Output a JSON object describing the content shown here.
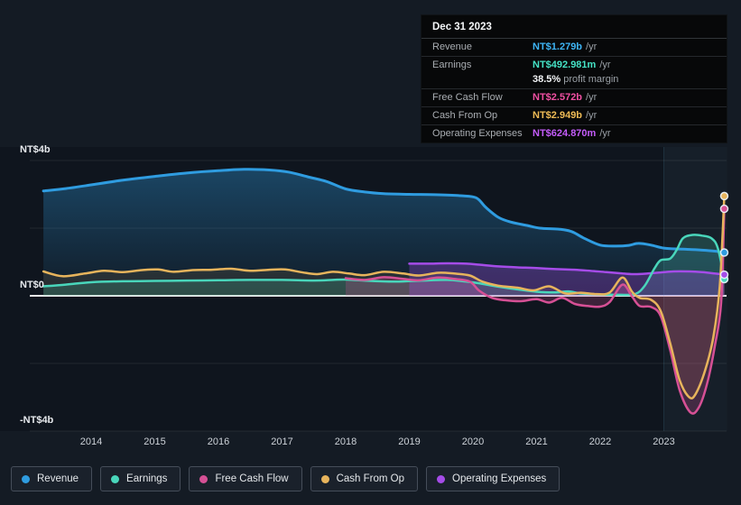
{
  "tooltip": {
    "date": "Dec 31 2023",
    "rows": [
      {
        "label": "Revenue",
        "value": "NT$1.279b",
        "suffix": "/yr",
        "series": "revenue"
      },
      {
        "label": "Earnings",
        "value": "NT$492.981m",
        "suffix": "/yr",
        "series": "earnings",
        "extra_bold": "38.5%",
        "extra_text": " profit margin"
      },
      {
        "label": "Free Cash Flow",
        "value": "NT$2.572b",
        "suffix": "/yr",
        "series": "fcf"
      },
      {
        "label": "Cash From Op",
        "value": "NT$2.949b",
        "suffix": "/yr",
        "series": "cashop"
      },
      {
        "label": "Operating Expenses",
        "value": "NT$624.870m",
        "suffix": "/yr",
        "series": "opex"
      }
    ]
  },
  "legend": [
    {
      "label": "Revenue",
      "series": "revenue"
    },
    {
      "label": "Earnings",
      "series": "earnings"
    },
    {
      "label": "Free Cash Flow",
      "series": "fcf"
    },
    {
      "label": "Cash From Op",
      "series": "cashop"
    },
    {
      "label": "Operating Expenses",
      "series": "opex"
    }
  ],
  "colors": {
    "revenue": {
      "line": "#2f9ce0",
      "fill": "rgba(47,156,224,0.38)",
      "fill2": "rgba(47,156,224,0.05)",
      "text": "#3eb5f6"
    },
    "earnings": {
      "line": "#49d6bb",
      "fill": "rgba(73,214,187,0.20)",
      "text": "#45e3c6"
    },
    "fcf": {
      "line": "#d65095",
      "fill": "rgba(214,80,149,0.24)",
      "text": "#f050a2"
    },
    "cashop": {
      "line": "#e7b45c",
      "fill": "rgba(231,180,92,0.10)",
      "text": "#efbb56"
    },
    "opex": {
      "line": "#a54ce8",
      "fill": "rgba(165,76,232,0.30)",
      "text": "#c45cfa"
    }
  },
  "chart_data": {
    "type": "area",
    "title": "",
    "unit": "NT$ billions per year",
    "legend_position": "bottom",
    "x_axis": {
      "tick_labels": [
        "2014",
        "2015",
        "2016",
        "2017",
        "2018",
        "2019",
        "2020",
        "2021",
        "2022",
        "2023"
      ],
      "tick_years": [
        2014,
        2015,
        2016,
        2017,
        2018,
        2019,
        2020,
        2021,
        2022,
        2023
      ],
      "range": [
        2013.25,
        2024.0
      ]
    },
    "y_axis": {
      "labeled_ticks": [
        {
          "label": "NT$4b",
          "value": 4
        },
        {
          "label": "NT$0",
          "value": 0
        },
        {
          "label": "-NT$4b",
          "value": -4
        }
      ],
      "gridline_values": [
        4,
        2,
        0,
        -2,
        -4
      ],
      "range": [
        -4.4,
        4.4
      ]
    },
    "highlight_band": {
      "from_year": 2023.0,
      "to_year": 2023.99
    },
    "series": [
      {
        "id": "revenue",
        "name": "Revenue",
        "points": [
          [
            2013.25,
            3.1
          ],
          [
            2013.6,
            3.17
          ],
          [
            2014,
            3.28
          ],
          [
            2014.5,
            3.42
          ],
          [
            2015,
            3.53
          ],
          [
            2015.5,
            3.63
          ],
          [
            2016,
            3.7
          ],
          [
            2016.4,
            3.74
          ],
          [
            2016.8,
            3.72
          ],
          [
            2017.1,
            3.66
          ],
          [
            2017.4,
            3.52
          ],
          [
            2017.7,
            3.38
          ],
          [
            2018,
            3.16
          ],
          [
            2018.3,
            3.07
          ],
          [
            2018.6,
            3.02
          ],
          [
            2019,
            3.0
          ],
          [
            2019.4,
            2.99
          ],
          [
            2019.8,
            2.96
          ],
          [
            2020.05,
            2.9
          ],
          [
            2020.2,
            2.62
          ],
          [
            2020.4,
            2.32
          ],
          [
            2020.6,
            2.18
          ],
          [
            2020.85,
            2.08
          ],
          [
            2021.05,
            2.0
          ],
          [
            2021.35,
            1.97
          ],
          [
            2021.55,
            1.9
          ],
          [
            2021.75,
            1.7
          ],
          [
            2022,
            1.5
          ],
          [
            2022.25,
            1.47
          ],
          [
            2022.45,
            1.49
          ],
          [
            2022.6,
            1.55
          ],
          [
            2022.8,
            1.5
          ],
          [
            2023.0,
            1.41
          ],
          [
            2023.3,
            1.38
          ],
          [
            2023.6,
            1.35
          ],
          [
            2023.8,
            1.32
          ],
          [
            2023.95,
            1.279
          ]
        ]
      },
      {
        "id": "cashop",
        "name": "Cash From Op",
        "points": [
          [
            2013.25,
            0.72
          ],
          [
            2013.55,
            0.58
          ],
          [
            2013.9,
            0.66
          ],
          [
            2014.2,
            0.74
          ],
          [
            2014.5,
            0.7
          ],
          [
            2014.8,
            0.76
          ],
          [
            2015.05,
            0.78
          ],
          [
            2015.3,
            0.71
          ],
          [
            2015.6,
            0.76
          ],
          [
            2015.9,
            0.77
          ],
          [
            2016.2,
            0.8
          ],
          [
            2016.5,
            0.74
          ],
          [
            2016.8,
            0.77
          ],
          [
            2017.05,
            0.78
          ],
          [
            2017.3,
            0.7
          ],
          [
            2017.55,
            0.64
          ],
          [
            2017.8,
            0.71
          ],
          [
            2018.05,
            0.66
          ],
          [
            2018.3,
            0.61
          ],
          [
            2018.6,
            0.71
          ],
          [
            2018.9,
            0.66
          ],
          [
            2019.15,
            0.6
          ],
          [
            2019.45,
            0.68
          ],
          [
            2019.7,
            0.66
          ],
          [
            2019.95,
            0.6
          ],
          [
            2020.15,
            0.42
          ],
          [
            2020.4,
            0.3
          ],
          [
            2020.7,
            0.24
          ],
          [
            2020.95,
            0.16
          ],
          [
            2021.2,
            0.28
          ],
          [
            2021.45,
            0.07
          ],
          [
            2021.7,
            0.09
          ],
          [
            2021.95,
            0.05
          ],
          [
            2022.15,
            0.1
          ],
          [
            2022.35,
            0.54
          ],
          [
            2022.5,
            0.12
          ],
          [
            2022.62,
            -0.06
          ],
          [
            2022.8,
            -0.12
          ],
          [
            2022.95,
            -0.45
          ],
          [
            2023.1,
            -1.4
          ],
          [
            2023.25,
            -2.5
          ],
          [
            2023.4,
            -3.0
          ],
          [
            2023.5,
            -2.9
          ],
          [
            2023.65,
            -2.2
          ],
          [
            2023.78,
            -1.2
          ],
          [
            2023.88,
            0.3
          ],
          [
            2023.95,
            2.949
          ]
        ]
      },
      {
        "id": "earnings",
        "name": "Earnings",
        "points": [
          [
            2013.25,
            0.28
          ],
          [
            2013.6,
            0.33
          ],
          [
            2014,
            0.4
          ],
          [
            2014.5,
            0.43
          ],
          [
            2015,
            0.44
          ],
          [
            2015.5,
            0.45
          ],
          [
            2016,
            0.46
          ],
          [
            2016.5,
            0.47
          ],
          [
            2017,
            0.47
          ],
          [
            2017.5,
            0.45
          ],
          [
            2017.8,
            0.47
          ],
          [
            2018,
            0.48
          ],
          [
            2018.4,
            0.44
          ],
          [
            2018.8,
            0.42
          ],
          [
            2019.2,
            0.45
          ],
          [
            2019.6,
            0.47
          ],
          [
            2019.9,
            0.42
          ],
          [
            2020.1,
            0.37
          ],
          [
            2020.4,
            0.27
          ],
          [
            2020.7,
            0.19
          ],
          [
            2021,
            0.12
          ],
          [
            2021.3,
            0.1
          ],
          [
            2021.5,
            0.13
          ],
          [
            2021.7,
            0.07
          ],
          [
            2022,
            0.04
          ],
          [
            2022.3,
            0.03
          ],
          [
            2022.55,
            0.05
          ],
          [
            2022.7,
            0.3
          ],
          [
            2022.85,
            0.8
          ],
          [
            2022.95,
            1.05
          ],
          [
            2023.1,
            1.1
          ],
          [
            2023.2,
            1.35
          ],
          [
            2023.3,
            1.7
          ],
          [
            2023.45,
            1.8
          ],
          [
            2023.6,
            1.78
          ],
          [
            2023.75,
            1.7
          ],
          [
            2023.85,
            1.4
          ],
          [
            2023.95,
            0.493
          ]
        ]
      },
      {
        "id": "fcf",
        "name": "Free Cash Flow",
        "points": [
          [
            2018.0,
            0.52
          ],
          [
            2018.3,
            0.47
          ],
          [
            2018.6,
            0.55
          ],
          [
            2018.9,
            0.5
          ],
          [
            2019.15,
            0.46
          ],
          [
            2019.45,
            0.54
          ],
          [
            2019.7,
            0.5
          ],
          [
            2019.95,
            0.42
          ],
          [
            2020.1,
            0.15
          ],
          [
            2020.3,
            -0.06
          ],
          [
            2020.5,
            -0.13
          ],
          [
            2020.75,
            -0.16
          ],
          [
            2021,
            -0.1
          ],
          [
            2021.2,
            -0.2
          ],
          [
            2021.4,
            -0.06
          ],
          [
            2021.6,
            -0.24
          ],
          [
            2021.8,
            -0.3
          ],
          [
            2022,
            -0.32
          ],
          [
            2022.15,
            -0.18
          ],
          [
            2022.35,
            0.33
          ],
          [
            2022.5,
            -0.02
          ],
          [
            2022.62,
            -0.3
          ],
          [
            2022.8,
            -0.33
          ],
          [
            2022.95,
            -0.6
          ],
          [
            2023.1,
            -1.6
          ],
          [
            2023.25,
            -2.8
          ],
          [
            2023.42,
            -3.45
          ],
          [
            2023.55,
            -3.3
          ],
          [
            2023.68,
            -2.6
          ],
          [
            2023.8,
            -1.5
          ],
          [
            2023.9,
            -0.2
          ],
          [
            2023.95,
            2.572
          ]
        ]
      },
      {
        "id": "opex",
        "name": "Operating Expenses",
        "points": [
          [
            2019.0,
            0.95
          ],
          [
            2019.3,
            0.95
          ],
          [
            2019.6,
            0.96
          ],
          [
            2019.9,
            0.95
          ],
          [
            2020.1,
            0.92
          ],
          [
            2020.4,
            0.87
          ],
          [
            2020.7,
            0.84
          ],
          [
            2021,
            0.82
          ],
          [
            2021.3,
            0.79
          ],
          [
            2021.6,
            0.77
          ],
          [
            2021.9,
            0.73
          ],
          [
            2022.1,
            0.7
          ],
          [
            2022.35,
            0.66
          ],
          [
            2022.55,
            0.64
          ],
          [
            2022.75,
            0.66
          ],
          [
            2022.95,
            0.69
          ],
          [
            2023.15,
            0.72
          ],
          [
            2023.4,
            0.72
          ],
          [
            2023.6,
            0.7
          ],
          [
            2023.8,
            0.66
          ],
          [
            2023.95,
            0.625
          ]
        ]
      }
    ]
  }
}
